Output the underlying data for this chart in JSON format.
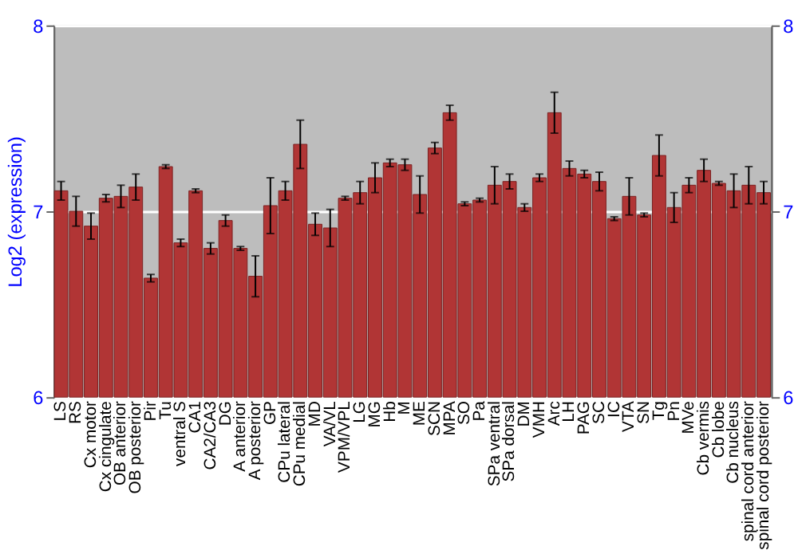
{
  "chart_data": {
    "type": "bar",
    "ylabel": "Log2 (expression)",
    "categories": [
      "LS",
      "RS",
      "Cx motor",
      "Cx cingulate",
      "OB anterior",
      "OB posterior",
      "Pir",
      "Tu",
      "ventral S",
      "CA1",
      "CA2/CA3",
      "DG",
      "A anterior",
      "A posterior",
      "GP",
      "CPu lateral",
      "CPu medial",
      "MD",
      "VA/VL",
      "VPM/VPL",
      "LG",
      "MG",
      "Hb",
      "M",
      "ME",
      "SCN",
      "MPA",
      "SO",
      "Pa",
      "SPa ventral",
      "SPa dorsal",
      "DM",
      "VMH",
      "Arc",
      "LH",
      "PAG",
      "SC",
      "IC",
      "VTA",
      "SN",
      "Tg",
      "Pn",
      "MVe",
      "Cb vermis",
      "Cb lobe",
      "Cb nucleus",
      "spinal cord anterior",
      "spinal cord posterior"
    ],
    "values": [
      7.11,
      7.0,
      6.92,
      7.07,
      7.08,
      7.13,
      6.64,
      7.24,
      6.83,
      7.11,
      6.8,
      6.95,
      6.8,
      6.65,
      7.03,
      7.11,
      7.36,
      6.93,
      6.91,
      7.07,
      7.1,
      7.18,
      7.26,
      7.25,
      7.09,
      7.34,
      7.53,
      7.04,
      7.06,
      7.14,
      7.16,
      7.02,
      7.18,
      7.53,
      7.23,
      7.2,
      7.16,
      6.96,
      7.08,
      6.98,
      7.3,
      7.02,
      7.14,
      7.22,
      7.15,
      7.11,
      7.14,
      7.1
    ],
    "errors": [
      0.05,
      0.08,
      0.07,
      0.02,
      0.06,
      0.07,
      0.02,
      0.01,
      0.02,
      0.01,
      0.03,
      0.03,
      0.01,
      0.11,
      0.15,
      0.05,
      0.13,
      0.06,
      0.1,
      0.01,
      0.06,
      0.08,
      0.02,
      0.03,
      0.1,
      0.03,
      0.04,
      0.01,
      0.01,
      0.1,
      0.04,
      0.02,
      0.02,
      0.11,
      0.04,
      0.02,
      0.05,
      0.01,
      0.1,
      0.01,
      0.11,
      0.08,
      0.04,
      0.06,
      0.01,
      0.09,
      0.1,
      0.06
    ],
    "color": "#b13535",
    "ylim": [
      6,
      8
    ],
    "yticks": [
      6,
      7,
      8
    ],
    "y2lim": [
      6,
      8
    ],
    "y2ticks": [
      6,
      7,
      8
    ],
    "grid": "y"
  }
}
